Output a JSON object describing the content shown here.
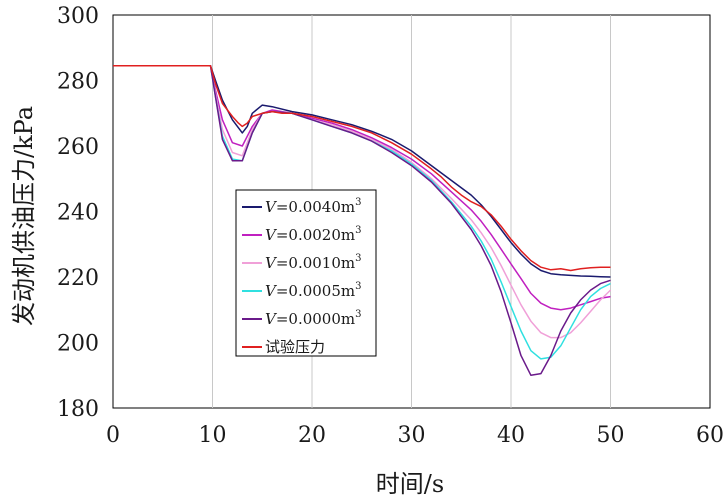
{
  "chart_data": {
    "type": "line",
    "xlabel": "时间/s",
    "ylabel": "发动机供油压力/kPa",
    "xlim": [
      0,
      60
    ],
    "ylim": [
      180,
      300
    ],
    "x_ticks": [
      "0",
      "10",
      "20",
      "30",
      "40",
      "50",
      "60"
    ],
    "y_ticks": [
      "180",
      "200",
      "220",
      "240",
      "260",
      "280",
      "300"
    ],
    "grid": "vertical",
    "legend_position": "center-left",
    "series": [
      {
        "name": "V=0.0040m³",
        "legend_var": "V",
        "legend_rest": "=0.0040m",
        "legend_sup": "3",
        "color": "#1a1a6e",
        "x": [
          0,
          9.8,
          10.3,
          11,
          12,
          13,
          13.5,
          14,
          15,
          16,
          18,
          20,
          22,
          24,
          26,
          28,
          30,
          32,
          34,
          36,
          37,
          38,
          39,
          40,
          41,
          42,
          43,
          44,
          45,
          46,
          47,
          48,
          49,
          50
        ],
        "y": [
          284.5,
          284.5,
          280,
          274,
          268,
          264,
          266,
          270,
          272.5,
          272,
          270.5,
          269.5,
          268,
          266.5,
          264.5,
          262,
          258.5,
          254,
          249.5,
          245,
          242,
          238.5,
          234.5,
          230.5,
          227,
          224,
          222,
          221,
          220.7,
          220.5,
          220.3,
          220.2,
          220.1,
          220
        ]
      },
      {
        "name": "V=0.0020m³",
        "legend_var": "V",
        "legend_rest": "=0.0020m",
        "legend_sup": "3",
        "color": "#c020c0",
        "x": [
          0,
          9.8,
          10.3,
          11,
          12,
          13,
          14,
          15,
          16,
          18,
          20,
          22,
          24,
          26,
          28,
          30,
          32,
          34,
          36,
          37,
          38,
          39,
          40,
          41,
          42,
          43,
          44,
          45,
          46,
          47,
          48,
          49,
          50
        ],
        "y": [
          284.5,
          284.5,
          277,
          268,
          261,
          260,
          266,
          270,
          271,
          270,
          268.5,
          267,
          265,
          262.5,
          259.5,
          256,
          251.5,
          246,
          240.5,
          237,
          233,
          228.5,
          224,
          219.5,
          215,
          212,
          210.5,
          210,
          210.5,
          211.5,
          212.5,
          213.5,
          214
        ]
      },
      {
        "name": "V=0.0010m³",
        "legend_var": "V",
        "legend_rest": "=0.0010m",
        "legend_sup": "3",
        "color": "#f0a0d8",
        "x": [
          0,
          9.8,
          10.3,
          11,
          12,
          13,
          14,
          15,
          16,
          18,
          20,
          22,
          24,
          26,
          28,
          30,
          32,
          34,
          36,
          37,
          38,
          39,
          40,
          41,
          42,
          43,
          44,
          45,
          46,
          47,
          48,
          49,
          50
        ],
        "y": [
          284.5,
          284.5,
          276,
          265,
          258,
          257,
          265,
          270,
          270.5,
          270,
          268,
          266.5,
          264.5,
          262,
          259,
          255,
          250,
          244,
          237.5,
          233.5,
          229,
          223.5,
          217.5,
          211.5,
          206.5,
          203,
          201.5,
          201.5,
          203,
          206,
          209.5,
          213,
          216
        ]
      },
      {
        "name": "V=0.0005m³",
        "legend_var": "V",
        "legend_rest": "=0.0005m",
        "legend_sup": "3",
        "color": "#30e0e0",
        "x": [
          0,
          9.8,
          10.3,
          11,
          12,
          13,
          14,
          15,
          16,
          18,
          20,
          22,
          24,
          26,
          28,
          30,
          32,
          34,
          36,
          37,
          38,
          39,
          40,
          41,
          42,
          43,
          44,
          45,
          46,
          47,
          48,
          49,
          50
        ],
        "y": [
          284.5,
          284.5,
          275,
          263,
          256,
          255.5,
          264,
          270,
          270.5,
          270,
          268,
          266,
          264,
          261.5,
          258.5,
          254.5,
          249.5,
          243,
          235.5,
          231,
          225.5,
          218.5,
          211,
          203.5,
          197.5,
          195,
          195.5,
          199,
          204.5,
          210,
          214,
          216.5,
          218
        ]
      },
      {
        "name": "V=0.0000m³",
        "legend_var": "V",
        "legend_rest": "=0.0000m",
        "legend_sup": "3",
        "color": "#6a1a8a",
        "x": [
          0,
          9.8,
          10.3,
          11,
          12,
          13,
          14,
          15,
          16,
          18,
          20,
          22,
          24,
          26,
          28,
          30,
          32,
          34,
          36,
          37,
          38,
          39,
          40,
          41,
          42,
          43,
          44,
          45,
          46,
          47,
          48,
          49,
          50
        ],
        "y": [
          284.5,
          284.5,
          275,
          262,
          255.5,
          255.5,
          264,
          270,
          270.5,
          270,
          268,
          266,
          264,
          261.5,
          258,
          254,
          249,
          242.5,
          234.5,
          229.5,
          223.5,
          215.5,
          206,
          196,
          190,
          190.5,
          196,
          203.5,
          209,
          213,
          216,
          218,
          219
        ]
      },
      {
        "name": "试验压力",
        "legend_var": "",
        "legend_rest": "试验压力",
        "legend_sup": "",
        "color": "#e02020",
        "x": [
          0,
          9.8,
          10.3,
          11,
          12,
          12.6,
          13,
          13.5,
          14,
          15,
          16,
          17,
          18,
          20,
          22,
          24,
          26,
          28,
          30,
          32,
          33,
          34,
          35,
          36,
          37,
          38,
          39,
          40,
          41,
          42,
          43,
          44,
          45,
          46,
          47,
          48,
          49,
          50
        ],
        "y": [
          284.5,
          284.5,
          279,
          273,
          269,
          267,
          266,
          267,
          269,
          270,
          270.5,
          270,
          270,
          269,
          267.5,
          266,
          264,
          261,
          257.5,
          253,
          250.5,
          247.5,
          245,
          243,
          241.5,
          239,
          235.5,
          231.5,
          228,
          225,
          223,
          222.2,
          222.5,
          222,
          222.5,
          222.8,
          223,
          223
        ]
      }
    ]
  }
}
